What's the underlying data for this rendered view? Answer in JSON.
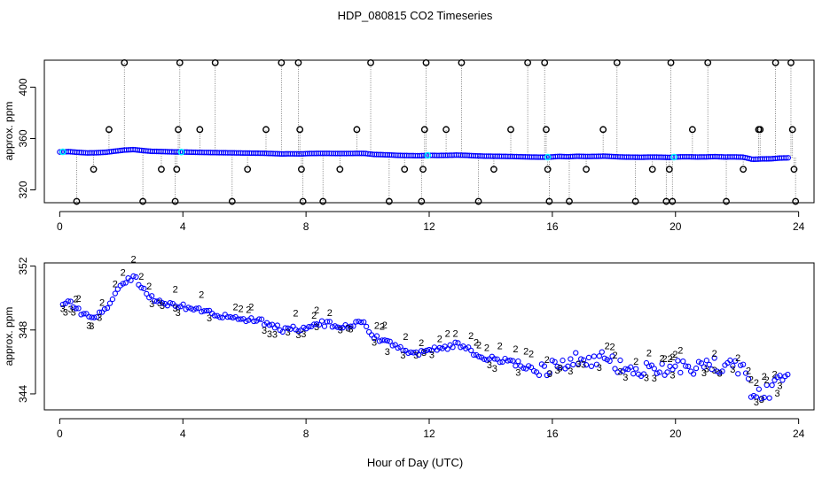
{
  "title": "HDP_080815  CO2 Timeseries",
  "xlabel": "Hour of Day (UTC)",
  "colors": {
    "raw": "#000000",
    "line": "#0000ff",
    "smooth": "#00ffff",
    "series2": "#00cc00",
    "series3": "#0000cc"
  },
  "chart_data": [
    {
      "type": "scatter",
      "title": "",
      "xlabel": "",
      "ylabel": "approx. ppm",
      "xlim": [
        -0.5,
        24.5
      ],
      "ylim": [
        310,
        421
      ],
      "x_ticks": [
        0,
        4,
        8,
        12,
        16,
        20,
        24
      ],
      "y_ticks": [
        320,
        360,
        400
      ],
      "series": [
        {
          "type": "line",
          "values_desc": "trace",
          "x": [
            0.0,
            0.3,
            0.6,
            0.9,
            1.2,
            1.5,
            1.8,
            2.1,
            2.4,
            2.7,
            3.0,
            3.3,
            3.6,
            3.9,
            4.2,
            4.5,
            4.8,
            5.1,
            5.4,
            5.7,
            6.0,
            6.3,
            6.6,
            6.9,
            7.2,
            7.5,
            7.8,
            8.1,
            8.4,
            8.7,
            9.0,
            9.3,
            9.6,
            9.9,
            10.2,
            10.5,
            10.8,
            11.1,
            11.4,
            11.7,
            12.0,
            12.3,
            12.6,
            12.9,
            13.2,
            13.5,
            13.8,
            14.1,
            14.4,
            14.7,
            15.0,
            15.3,
            15.6,
            15.9,
            16.2,
            16.5,
            16.8,
            17.1,
            17.4,
            17.7,
            18.0,
            18.3,
            18.6,
            18.9,
            19.2,
            19.5,
            19.8,
            20.1,
            20.4,
            20.7,
            21.0,
            21.3,
            21.6,
            21.9,
            22.2,
            22.5,
            22.8,
            23.1,
            23.4,
            23.7
          ],
          "y": [
            349.5,
            349.8,
            349.2,
            348.8,
            348.9,
            349.3,
            350.2,
            351.0,
            351.4,
            350.6,
            350.0,
            349.9,
            349.6,
            349.5,
            349.4,
            349.2,
            349.1,
            349.0,
            348.9,
            348.8,
            348.7,
            348.6,
            348.5,
            348.3,
            348.0,
            348.1,
            348.0,
            348.3,
            348.4,
            348.4,
            348.3,
            348.3,
            348.4,
            348.4,
            347.6,
            347.4,
            347.1,
            346.8,
            346.7,
            346.6,
            346.9,
            346.8,
            346.9,
            347.1,
            346.9,
            346.5,
            346.3,
            346.2,
            346.1,
            346.0,
            345.8,
            345.6,
            345.5,
            345.5,
            346.1,
            345.8,
            346.2,
            346.0,
            346.1,
            346.3,
            345.9,
            345.6,
            345.5,
            345.4,
            345.6,
            345.5,
            345.3,
            345.7,
            345.8,
            345.6,
            345.7,
            345.9,
            345.6,
            345.7,
            345.5,
            343.8,
            344.1,
            344.2,
            344.8,
            345.0
          ]
        },
        {
          "type": "outliers",
          "x": [
            0.55,
            1.1,
            1.6,
            2.1,
            2.7,
            3.3,
            3.75,
            3.8,
            3.85,
            3.9,
            4.55,
            5.05,
            5.6,
            6.1,
            6.7,
            7.2,
            7.75,
            7.8,
            7.85,
            7.9,
            8.55,
            9.1,
            9.65,
            10.1,
            10.7,
            11.2,
            11.75,
            11.8,
            11.85,
            11.9,
            12.55,
            13.05,
            13.6,
            14.1,
            14.65,
            15.2,
            15.75,
            15.8,
            15.85,
            15.9,
            16.55,
            17.1,
            17.65,
            18.1,
            18.7,
            19.25,
            19.7,
            19.8,
            19.85,
            19.9,
            20.55,
            21.05,
            21.65,
            22.2,
            22.7,
            22.75,
            23.25,
            23.75,
            23.8,
            23.85,
            23.9
          ],
          "y": [
            311,
            336,
            367,
            419,
            311,
            336,
            311,
            336,
            367,
            419,
            367,
            419,
            311,
            336,
            367,
            419,
            419,
            367,
            336,
            311,
            311,
            336,
            367,
            419,
            311,
            336,
            311,
            336,
            367,
            419,
            367,
            419,
            311,
            336,
            367,
            419,
            419,
            367,
            336,
            311,
            311,
            336,
            367,
            419,
            311,
            336,
            311,
            336,
            419,
            311,
            367,
            419,
            311,
            336,
            367,
            367,
            419,
            419,
            367,
            336,
            311
          ]
        }
      ]
    },
    {
      "type": "scatter",
      "title": "",
      "xlabel": "Hour of Day (UTC)",
      "ylabel": "approx. ppm",
      "xlim": [
        -0.5,
        24.5
      ],
      "ylim": [
        343.0,
        352.2
      ],
      "x_ticks": [
        0,
        4,
        8,
        12,
        16,
        20,
        24
      ],
      "y_ticks": [
        344,
        348,
        352
      ],
      "series": [
        {
          "name": "",
          "marker": "2"
        },
        {
          "name": "",
          "marker": "3"
        }
      ]
    }
  ]
}
